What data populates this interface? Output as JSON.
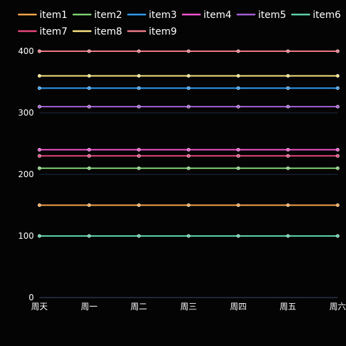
{
  "chart_data": {
    "type": "line",
    "categories": [
      "周天",
      "周一",
      "周二",
      "周三",
      "周四",
      "周五",
      "周六"
    ],
    "ylim": [
      0,
      400
    ],
    "yticks": [
      0,
      100,
      200,
      300,
      400
    ],
    "grid": true,
    "legend_position": "top",
    "series": [
      {
        "name": "item1",
        "color": "#f7a54a",
        "values": [
          150,
          150,
          150,
          150,
          150,
          150,
          150
        ]
      },
      {
        "name": "item2",
        "color": "#7fcf73",
        "values": [
          210,
          210,
          210,
          210,
          210,
          210,
          210
        ]
      },
      {
        "name": "item3",
        "color": "#2f9bf0",
        "values": [
          340,
          340,
          340,
          340,
          340,
          340,
          340
        ]
      },
      {
        "name": "item4",
        "color": "#f255d0",
        "values": [
          240,
          240,
          240,
          240,
          240,
          240,
          240
        ]
      },
      {
        "name": "item5",
        "color": "#a55fd6",
        "values": [
          310,
          310,
          310,
          310,
          310,
          310,
          310
        ]
      },
      {
        "name": "item6",
        "color": "#5fd3a8",
        "values": [
          100,
          100,
          100,
          100,
          100,
          100,
          100
        ]
      },
      {
        "name": "item7",
        "color": "#e8477a",
        "values": [
          230,
          230,
          230,
          230,
          230,
          230,
          230
        ]
      },
      {
        "name": "item8",
        "color": "#fbe37f",
        "values": [
          360,
          360,
          360,
          360,
          360,
          360,
          360
        ]
      },
      {
        "name": "item9",
        "color": "#f07a87",
        "values": [
          400,
          400,
          400,
          400,
          400,
          400,
          400
        ]
      }
    ]
  }
}
